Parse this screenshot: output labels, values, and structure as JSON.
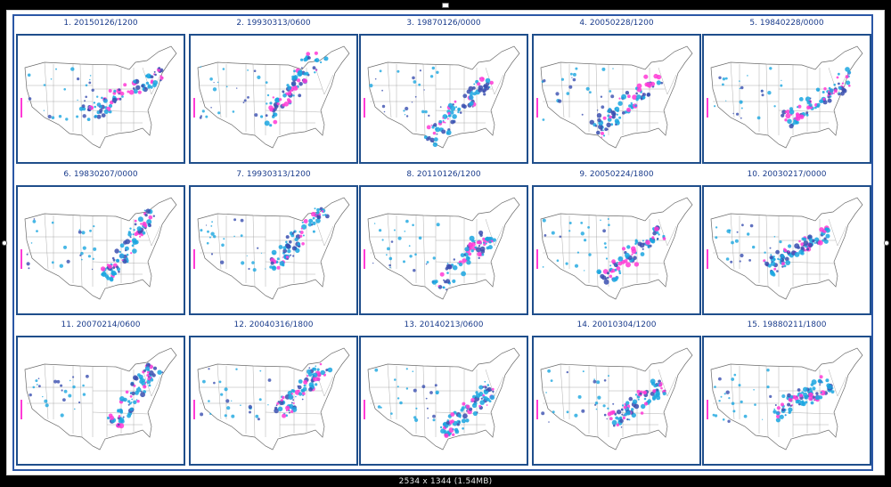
{
  "panels": [
    "1. 20150126/1200",
    "2. 19930313/0600",
    "3. 19870126/0000",
    "4. 20050228/1200",
    "5. 19840228/0000",
    "6. 19830207/0000",
    "7. 19930313/1200",
    "8. 20110126/1200",
    "9. 20050224/1800",
    "10. 20030217/0000",
    "11. 20070214/0600",
    "12. 20040316/1800",
    "13. 20140213/0600",
    "14. 20010304/1200",
    "15. 19880211/1800"
  ],
  "image_size_caption": "2534 x 1344 (1.54MB)",
  "colors": {
    "border_blue": "#1f4e8b",
    "precip_cyan": "#1aa6e0",
    "precip_blue": "#3a4fb0",
    "precip_magenta": "#ff3ad6"
  }
}
